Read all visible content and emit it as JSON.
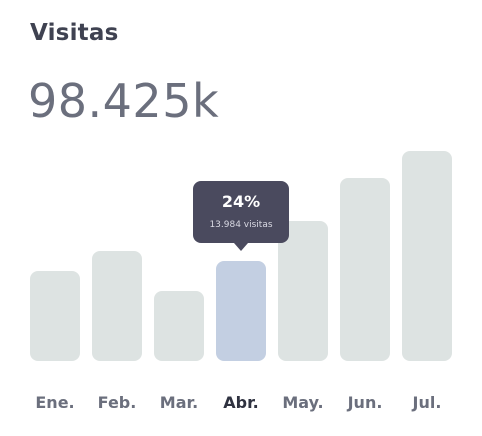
{
  "card": {
    "title": "Visitas",
    "total": "98.425k"
  },
  "tooltip": {
    "percent": "24%",
    "detail": "13.984 visitas"
  },
  "colors": {
    "bar": "#dde3e2",
    "bar_active": "#c3cfe2",
    "label": "#6b6f7d",
    "label_active": "#2f3240",
    "tooltip_bg": "#4a4a5e"
  },
  "chart_data": {
    "type": "bar",
    "categories": [
      "Ene.",
      "Feb.",
      "Mar.",
      "Abr.",
      "May.",
      "Jun.",
      "Jul."
    ],
    "values": [
      9,
      11,
      7,
      10,
      14,
      18.3,
      21
    ],
    "active_index": 3,
    "ylim": [
      0,
      21
    ]
  }
}
